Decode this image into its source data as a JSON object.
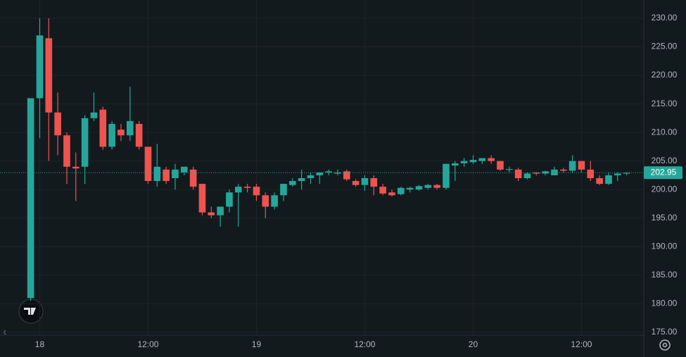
{
  "chart_data": {
    "type": "candlestick",
    "x": [
      -1,
      0,
      1,
      2,
      3,
      4,
      5,
      6,
      7,
      8,
      9,
      10,
      11,
      12,
      13,
      14,
      15,
      16,
      17,
      18,
      19,
      20,
      21,
      22,
      23,
      24,
      25,
      26,
      27,
      28,
      29,
      30,
      31,
      32,
      33,
      34,
      35,
      36,
      37,
      38,
      39,
      40,
      41,
      42,
      43,
      44,
      45,
      46,
      47,
      48,
      49,
      50,
      51,
      52,
      53,
      54,
      55,
      56,
      57,
      58,
      59,
      60,
      61,
      62,
      63,
      64,
      65
    ],
    "open": [
      181,
      216,
      226.5,
      213.5,
      209.5,
      204,
      204,
      212.5,
      214,
      207.5,
      210.5,
      209.5,
      211.5,
      207.5,
      201.5,
      203.5,
      202,
      203,
      203.5,
      201,
      196,
      195.5,
      197,
      199.5,
      200.5,
      200.5,
      199,
      197,
      199,
      200.8,
      201.5,
      202,
      202.5,
      203,
      202.8,
      203.2,
      201.5,
      200.8,
      202,
      200.5,
      199.5,
      199.2,
      200,
      200,
      200.3,
      200.8,
      200.3,
      204.2,
      204.6,
      204.8,
      205,
      205.5,
      205,
      203.5,
      203.5,
      202,
      203,
      202.8,
      202.5,
      203.5,
      203.3,
      205,
      203.5,
      202,
      201,
      202.5,
      202.8
    ],
    "high": [
      216,
      230,
      230,
      217,
      210,
      206.5,
      213,
      217,
      214.5,
      212,
      211.5,
      218,
      212,
      207.5,
      208,
      204,
      204.5,
      204,
      204,
      201,
      197,
      197,
      200,
      201,
      201,
      201,
      199.5,
      199.5,
      201,
      202,
      203.5,
      203,
      203,
      203.5,
      203.5,
      203.5,
      201.8,
      202.5,
      202.5,
      201,
      200,
      200.5,
      200.5,
      200.8,
      201,
      201,
      204.5,
      205,
      205.5,
      206,
      205.5,
      206,
      205,
      204,
      203.8,
      203,
      203,
      203.3,
      204,
      203.8,
      206,
      205,
      205,
      202.5,
      203,
      203,
      203
    ],
    "low": [
      180.5,
      209,
      205,
      206,
      201,
      198,
      201,
      212,
      207,
      207,
      208.5,
      208.5,
      207,
      201,
      200.5,
      201,
      200,
      202.5,
      200,
      195.5,
      195,
      193.5,
      196,
      193.5,
      199.5,
      198,
      195,
      196.5,
      198,
      200.5,
      200,
      201,
      201,
      202.5,
      202.5,
      201.5,
      200.5,
      199.8,
      199,
      199,
      198.8,
      199,
      199.5,
      199.8,
      200,
      200,
      200,
      201.5,
      204,
      204.5,
      204.5,
      204.5,
      203.3,
      203,
      201.5,
      201.8,
      202.5,
      202.5,
      202.5,
      203,
      203,
      203,
      201.5,
      200.8,
      200.8,
      201.5,
      202.5
    ],
    "close": [
      216,
      227,
      213.5,
      209.5,
      204,
      203.7,
      212.5,
      213.5,
      207.5,
      211.5,
      209.5,
      212,
      207.5,
      201.5,
      204,
      201.5,
      203.5,
      204,
      200.5,
      196,
      195.5,
      197,
      199.5,
      200.5,
      200.3,
      199,
      197,
      199,
      201,
      201.5,
      202,
      202.5,
      203,
      203.2,
      203,
      201.8,
      200.8,
      202,
      200.5,
      199.3,
      199,
      200.3,
      200.3,
      200.6,
      200.8,
      200.3,
      204.5,
      204.6,
      205,
      205.2,
      205.5,
      205,
      203.5,
      203.6,
      202,
      202.8,
      202.8,
      203.2,
      203.5,
      203.3,
      205,
      203.5,
      202,
      201,
      202.5,
      202.8,
      202.95
    ],
    "up_color": "#26a69a",
    "down_color": "#ef5350",
    "last_price": 202.95,
    "xlim": [
      -4.4,
      66.9
    ],
    "ylim": [
      174.5,
      233.2
    ],
    "xticks": [
      {
        "value": 0,
        "label": "18"
      },
      {
        "value": 12,
        "label": "12:00"
      },
      {
        "value": 24,
        "label": "19"
      },
      {
        "value": 36,
        "label": "12:00"
      },
      {
        "value": 48,
        "label": "20"
      },
      {
        "value": 60,
        "label": "12:00"
      }
    ],
    "yticks": [
      {
        "value": 175,
        "label": "175.00"
      },
      {
        "value": 180,
        "label": "180.00"
      },
      {
        "value": 185,
        "label": "185.00"
      },
      {
        "value": 190,
        "label": "190.00"
      },
      {
        "value": 195,
        "label": "195.00"
      },
      {
        "value": 200,
        "label": "200.00"
      },
      {
        "value": 205,
        "label": "205.00"
      },
      {
        "value": 210,
        "label": "210.00"
      },
      {
        "value": 215,
        "label": "215.00"
      },
      {
        "value": 220,
        "label": "220.00"
      },
      {
        "value": 225,
        "label": "225.00"
      },
      {
        "value": 230,
        "label": "230.00"
      }
    ],
    "grid": true
  }
}
